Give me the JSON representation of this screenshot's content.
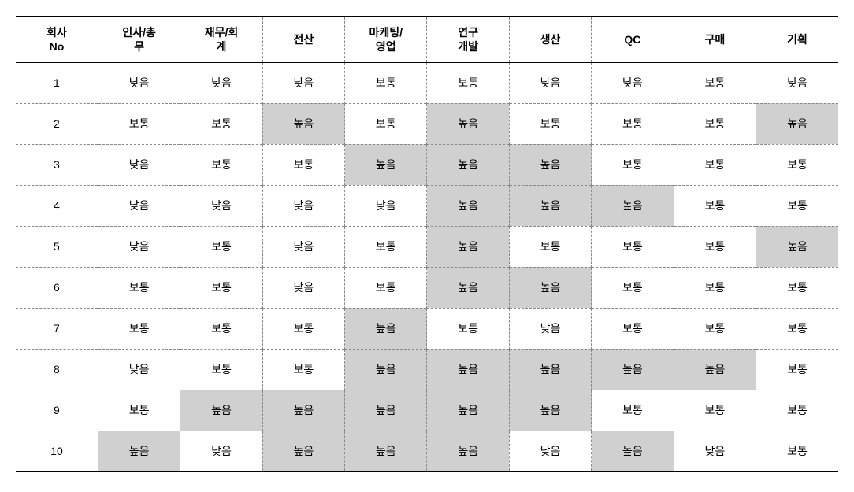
{
  "table": {
    "columns": [
      "회사\nNo",
      "인사/총\n무",
      "재무/회\n계",
      "전산",
      "마케팅/\n영업",
      "연구\n개발",
      "생산",
      "QC",
      "구매",
      "기획"
    ],
    "rows": [
      {
        "no": "1",
        "cells": [
          {
            "v": "낮음",
            "h": false
          },
          {
            "v": "낮음",
            "h": false
          },
          {
            "v": "낮음",
            "h": false
          },
          {
            "v": "보통",
            "h": false
          },
          {
            "v": "보통",
            "h": false
          },
          {
            "v": "낮음",
            "h": false
          },
          {
            "v": "낮음",
            "h": false
          },
          {
            "v": "보통",
            "h": false
          },
          {
            "v": "낮음",
            "h": false
          }
        ]
      },
      {
        "no": "2",
        "cells": [
          {
            "v": "보통",
            "h": false
          },
          {
            "v": "보통",
            "h": false
          },
          {
            "v": "높음",
            "h": true
          },
          {
            "v": "보통",
            "h": false
          },
          {
            "v": "높음",
            "h": true
          },
          {
            "v": "보통",
            "h": false
          },
          {
            "v": "보통",
            "h": false
          },
          {
            "v": "보통",
            "h": false
          },
          {
            "v": "높음",
            "h": true
          }
        ]
      },
      {
        "no": "3",
        "cells": [
          {
            "v": "낮음",
            "h": false
          },
          {
            "v": "보통",
            "h": false
          },
          {
            "v": "보통",
            "h": false
          },
          {
            "v": "높음",
            "h": true
          },
          {
            "v": "높음",
            "h": true
          },
          {
            "v": "높음",
            "h": true
          },
          {
            "v": "보통",
            "h": false
          },
          {
            "v": "보통",
            "h": false
          },
          {
            "v": "보통",
            "h": false
          }
        ]
      },
      {
        "no": "4",
        "cells": [
          {
            "v": "낮음",
            "h": false
          },
          {
            "v": "낮음",
            "h": false
          },
          {
            "v": "낮음",
            "h": false
          },
          {
            "v": "낮음",
            "h": false
          },
          {
            "v": "높음",
            "h": true
          },
          {
            "v": "높음",
            "h": true
          },
          {
            "v": "높음",
            "h": true
          },
          {
            "v": "보통",
            "h": false
          },
          {
            "v": "보통",
            "h": false
          }
        ]
      },
      {
        "no": "5",
        "cells": [
          {
            "v": "낮음",
            "h": false
          },
          {
            "v": "보통",
            "h": false
          },
          {
            "v": "낮음",
            "h": false
          },
          {
            "v": "보통",
            "h": false
          },
          {
            "v": "높음",
            "h": true
          },
          {
            "v": "보통",
            "h": false
          },
          {
            "v": "보통",
            "h": false
          },
          {
            "v": "보통",
            "h": false
          },
          {
            "v": "높음",
            "h": true
          }
        ]
      },
      {
        "no": "6",
        "cells": [
          {
            "v": "보통",
            "h": false
          },
          {
            "v": "보통",
            "h": false
          },
          {
            "v": "낮음",
            "h": false
          },
          {
            "v": "보통",
            "h": false
          },
          {
            "v": "높음",
            "h": true
          },
          {
            "v": "높음",
            "h": true
          },
          {
            "v": "보통",
            "h": false
          },
          {
            "v": "보통",
            "h": false
          },
          {
            "v": "보통",
            "h": false
          }
        ]
      },
      {
        "no": "7",
        "cells": [
          {
            "v": "보통",
            "h": false
          },
          {
            "v": "보통",
            "h": false
          },
          {
            "v": "보통",
            "h": false
          },
          {
            "v": "높음",
            "h": true
          },
          {
            "v": "보통",
            "h": false
          },
          {
            "v": "낮음",
            "h": false
          },
          {
            "v": "보통",
            "h": false
          },
          {
            "v": "보통",
            "h": false
          },
          {
            "v": "보통",
            "h": false
          }
        ]
      },
      {
        "no": "8",
        "cells": [
          {
            "v": "낮음",
            "h": false
          },
          {
            "v": "보통",
            "h": false
          },
          {
            "v": "보통",
            "h": false
          },
          {
            "v": "높음",
            "h": true
          },
          {
            "v": "높음",
            "h": true
          },
          {
            "v": "높음",
            "h": true
          },
          {
            "v": "높음",
            "h": true
          },
          {
            "v": "높음",
            "h": true
          },
          {
            "v": "보통",
            "h": false
          }
        ]
      },
      {
        "no": "9",
        "cells": [
          {
            "v": "보통",
            "h": false
          },
          {
            "v": "높음",
            "h": true
          },
          {
            "v": "높음",
            "h": true
          },
          {
            "v": "높음",
            "h": true
          },
          {
            "v": "높음",
            "h": true
          },
          {
            "v": "높음",
            "h": true
          },
          {
            "v": "보통",
            "h": false
          },
          {
            "v": "보통",
            "h": false
          },
          {
            "v": "보통",
            "h": false
          }
        ]
      },
      {
        "no": "10",
        "cells": [
          {
            "v": "높음",
            "h": true
          },
          {
            "v": "낮음",
            "h": false
          },
          {
            "v": "높음",
            "h": true
          },
          {
            "v": "높음",
            "h": true
          },
          {
            "v": "높음",
            "h": true
          },
          {
            "v": "낮음",
            "h": false
          },
          {
            "v": "높음",
            "h": true
          },
          {
            "v": "낮음",
            "h": false
          },
          {
            "v": "보통",
            "h": false
          }
        ]
      }
    ],
    "highlight_color": "#d0d0d0",
    "background_color": "#ffffff",
    "border_color_solid": "#000000",
    "border_color_dashed": "#888888",
    "font_size": 14
  }
}
